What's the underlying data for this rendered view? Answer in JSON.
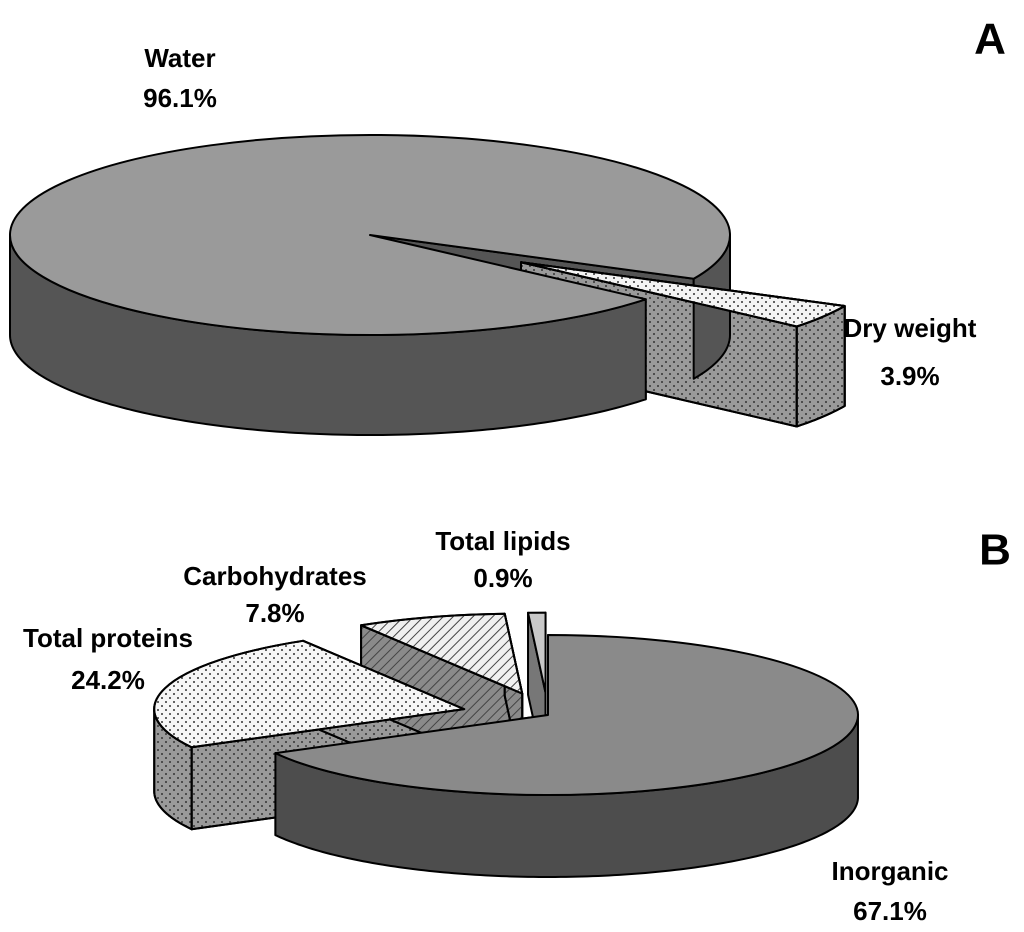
{
  "chart_data": [
    {
      "type": "pie",
      "title": "A",
      "categories": [
        "Water",
        "Dry weight"
      ],
      "values": [
        96.1,
        3.9
      ],
      "value_labels": [
        "96.1%",
        "3.9%"
      ],
      "colors": [
        "#9a9a9a",
        "#f4f4f4"
      ],
      "side_colors": [
        "#555555",
        "#9a9a9a"
      ],
      "patterns": [
        "none",
        "dots"
      ],
      "exploded": [
        false,
        true
      ]
    },
    {
      "type": "pie",
      "title": "B",
      "categories": [
        "Inorganic",
        "Total proteins",
        "Carbohydrates",
        "Total lipids"
      ],
      "values": [
        67.1,
        24.2,
        7.8,
        0.9
      ],
      "value_labels": [
        "67.1%",
        "24.2%",
        "7.8%",
        "0.9%"
      ],
      "colors": [
        "#8a8a8a",
        "#f6f6f6",
        "#f0f0f0",
        "#c8c8c8"
      ],
      "side_colors": [
        "#4d4d4d",
        "#9a9a9a",
        "#8a8a8a",
        "#777777"
      ],
      "patterns": [
        "none",
        "dots",
        "hatch",
        "none"
      ],
      "exploded": [
        false,
        true,
        true,
        true
      ]
    }
  ]
}
